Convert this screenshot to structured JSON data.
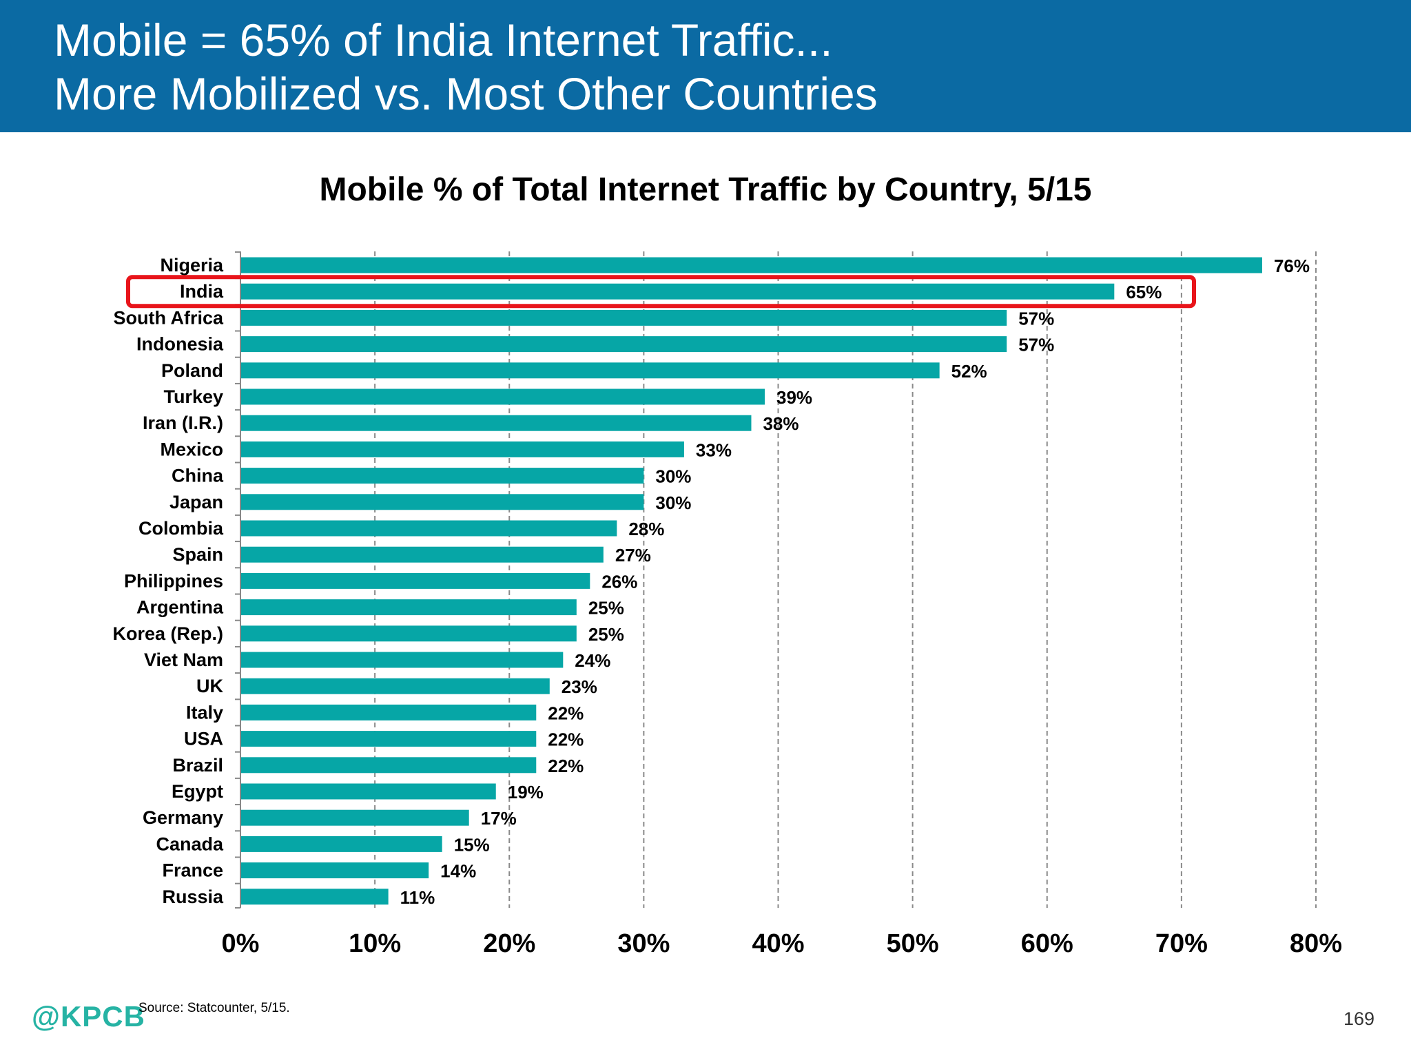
{
  "header": {
    "line1": "Mobile = 65% of India Internet Traffic...",
    "line2": "More Mobilized vs. Most Other Countries"
  },
  "colors": {
    "header_bg": "#0b6aa3",
    "bar": "#06a6a6",
    "highlight": "#e8141a",
    "grid": "#8a8a8a"
  },
  "chart_data": {
    "type": "bar",
    "orientation": "horizontal",
    "title": "Mobile % of Total Internet Traffic by Country, 5/15",
    "categories": [
      "Nigeria",
      "India",
      "South Africa",
      "Indonesia",
      "Poland",
      "Turkey",
      "Iran (I.R.)",
      "Mexico",
      "China",
      "Japan",
      "Colombia",
      "Spain",
      "Philippines",
      "Argentina",
      "Korea (Rep.)",
      "Viet Nam",
      "UK",
      "Italy",
      "USA",
      "Brazil",
      "Egypt",
      "Germany",
      "Canada",
      "France",
      "Russia"
    ],
    "values": [
      76,
      65,
      57,
      57,
      52,
      39,
      38,
      33,
      30,
      30,
      28,
      27,
      26,
      25,
      25,
      24,
      23,
      22,
      22,
      22,
      19,
      17,
      15,
      14,
      11
    ],
    "value_labels": [
      "76%",
      "65%",
      "57%",
      "57%",
      "52%",
      "39%",
      "38%",
      "33%",
      "30%",
      "30%",
      "28%",
      "27%",
      "26%",
      "25%",
      "25%",
      "24%",
      "23%",
      "22%",
      "22%",
      "22%",
      "19%",
      "17%",
      "15%",
      "14%",
      "11%"
    ],
    "xlim": [
      0,
      80
    ],
    "xticks": [
      "0%",
      "10%",
      "20%",
      "30%",
      "40%",
      "50%",
      "60%",
      "70%",
      "80%"
    ],
    "grid": "vertical dashed",
    "highlighted_category": "India"
  },
  "footer": {
    "source": "Source: Statcounter, 5/15.",
    "logo": "@KPCB",
    "page": "169"
  }
}
